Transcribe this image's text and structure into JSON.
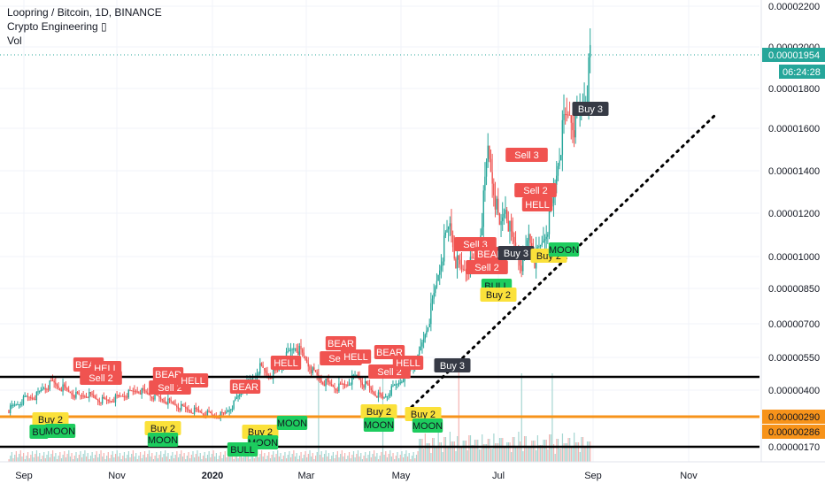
{
  "header": {
    "symbol_line": "Loopring / Bitcoin, 1D, BINANCE",
    "indicator_line": "Crypto Engineering ▯",
    "volume_label": "Vol"
  },
  "colors": {
    "up": "#26a69a",
    "down": "#ef5350",
    "horizontal_line": "#000000",
    "support_line": "#f7931a",
    "sell_label": "#f05350",
    "buy_label": "#fbe13a",
    "moon_label": "#1dcc5e",
    "dark_label": "#363a45",
    "last_price": "#26a69a"
  },
  "price_axis": {
    "ticks": [
      "0.00002200",
      "0.00002000",
      "0.00001800",
      "0.00001600",
      "0.00001400",
      "0.00001200",
      "0.00001000",
      "0.00000850",
      "0.00000700",
      "0.00000550",
      "0.00000400",
      "0.00000290",
      "0.00000170"
    ],
    "last_price_label": "0.00001954",
    "countdown_label": "06:24:28",
    "orange_badge_1": "0.00000290",
    "orange_badge_2": "0.00000286"
  },
  "time_axis": {
    "labels": [
      "Sep",
      "Nov",
      "2020",
      "Mar",
      "May",
      "Jul",
      "Sep",
      "Nov"
    ]
  },
  "chart_data": {
    "type": "candlestick",
    "title": "Loopring / Bitcoin, 1D, BINANCE",
    "scale": "log",
    "ylim": [
      1.5e-06,
      2.4e-06
    ],
    "horizontal_lines": [
      1.7e-06,
      4.55e-06,
      2.9e-06
    ],
    "last_price": 1.954e-05,
    "x_labels": [
      "Sep",
      "Nov",
      "2020",
      "Mar",
      "May",
      "Jul",
      "Sep",
      "Nov"
    ],
    "close_path": [
      [
        0,
        3.15e-06
      ],
      [
        6,
        3.4e-06
      ],
      [
        12,
        3.65e-06
      ],
      [
        18,
        3.7e-06
      ],
      [
        24,
        4.1e-06
      ],
      [
        30,
        4.3e-06
      ],
      [
        36,
        4.1e-06
      ],
      [
        42,
        3.9e-06
      ],
      [
        48,
        3.7e-06
      ],
      [
        54,
        3.8e-06
      ],
      [
        60,
        3.6e-06
      ],
      [
        66,
        3.5e-06
      ],
      [
        72,
        3.6e-06
      ],
      [
        80,
        3.8e-06
      ],
      [
        88,
        4e-06
      ],
      [
        96,
        3.8e-06
      ],
      [
        104,
        3.6e-06
      ],
      [
        112,
        3.4e-06
      ],
      [
        120,
        3.2e-06
      ],
      [
        128,
        3.1e-06
      ],
      [
        136,
        3e-06
      ],
      [
        142,
        2.9e-06
      ],
      [
        148,
        3e-06
      ],
      [
        154,
        3.4e-06
      ],
      [
        160,
        4e-06
      ],
      [
        166,
        4.4e-06
      ],
      [
        172,
        5e-06
      ],
      [
        178,
        4.6e-06
      ],
      [
        184,
        4.8e-06
      ],
      [
        190,
        5.5e-06
      ],
      [
        196,
        6e-06
      ],
      [
        202,
        5.5e-06
      ],
      [
        208,
        4.8e-06
      ],
      [
        214,
        4.4e-06
      ],
      [
        220,
        4.2e-06
      ],
      [
        226,
        4.1e-06
      ],
      [
        232,
        4.3e-06
      ],
      [
        238,
        4.6e-06
      ],
      [
        244,
        4.2e-06
      ],
      [
        250,
        3.9e-06
      ],
      [
        256,
        3.6e-06
      ],
      [
        262,
        4e-06
      ],
      [
        268,
        4.4e-06
      ],
      [
        274,
        4.8e-06
      ],
      [
        280,
        5.4e-06
      ],
      [
        286,
        6.8e-06
      ],
      [
        290,
        7.8e-06
      ],
      [
        294,
        9.2e-06
      ],
      [
        298,
        1.05e-05
      ],
      [
        302,
        1.15e-05
      ],
      [
        306,
        9.8e-06
      ],
      [
        310,
        9.3e-06
      ],
      [
        316,
        9.6e-06
      ],
      [
        320,
        9.8e-06
      ],
      [
        324,
        1.18e-05
      ],
      [
        328,
        1.5e-05
      ],
      [
        332,
        1.32e-05
      ],
      [
        336,
        1.12e-05
      ],
      [
        340,
        1.24e-05
      ],
      [
        344,
        1.08e-05
      ],
      [
        348,
        1.02e-05
      ],
      [
        352,
        9.5e-06
      ],
      [
        356,
        1.1e-05
      ],
      [
        360,
        9.8e-06
      ],
      [
        364,
        1.04e-05
      ],
      [
        368,
        1.12e-05
      ],
      [
        372,
        1.22e-05
      ],
      [
        376,
        1.45e-05
      ],
      [
        380,
        1.62e-05
      ],
      [
        384,
        1.68e-05
      ],
      [
        388,
        1.6e-05
      ],
      [
        392,
        1.72e-05
      ],
      [
        396,
        1.8e-05
      ],
      [
        398,
        1.95e-05
      ]
    ],
    "signals": [
      {
        "label": "Sell 3",
        "kind": "sell",
        "day": 325
      },
      {
        "label": "Sell 2",
        "kind": "sell",
        "day": 345
      },
      {
        "label": "HELL",
        "kind": "sell",
        "day": 350
      },
      {
        "label": "Sell 3",
        "kind": "sell",
        "day": 277
      },
      {
        "label": "BEAR",
        "kind": "sell",
        "day": 288
      },
      {
        "label": "Buy 3",
        "kind": "dark",
        "day": 335
      },
      {
        "label": "Sell 2",
        "kind": "sell",
        "day": 290
      },
      {
        "label": "BULL",
        "kind": "moon",
        "day": 288
      },
      {
        "label": "Buy 2",
        "kind": "buy",
        "day": 293
      },
      {
        "label": "Buy 2",
        "kind": "buy",
        "day": 348
      },
      {
        "label": "MOON",
        "kind": "moon",
        "day": 370
      },
      {
        "label": "Buy 3",
        "kind": "dark",
        "day": 393
      },
      {
        "label": "BEAR",
        "kind": "sell",
        "day": 45
      },
      {
        "label": "HELL",
        "kind": "sell",
        "day": 57
      },
      {
        "label": "Sell 2",
        "kind": "sell",
        "day": 53
      },
      {
        "label": "BEAR",
        "kind": "sell",
        "day": 98
      },
      {
        "label": "Sell 2",
        "kind": "sell",
        "day": 103
      },
      {
        "label": "HELL",
        "kind": "sell",
        "day": 112
      },
      {
        "label": "BEAR",
        "kind": "sell",
        "day": 140
      },
      {
        "label": "HELL",
        "kind": "sell",
        "day": 180
      },
      {
        "label": "BEAR",
        "kind": "sell",
        "day": 207
      },
      {
        "label": "Sell 2",
        "kind": "sell",
        "day": 215
      },
      {
        "label": "HELL",
        "kind": "sell",
        "day": 218
      },
      {
        "label": "BEAR",
        "kind": "sell",
        "day": 250
      },
      {
        "label": "Sell 2",
        "kind": "sell",
        "day": 253
      },
      {
        "label": "HELL",
        "kind": "sell",
        "day": 262
      },
      {
        "label": "Buy 3",
        "kind": "dark",
        "day": 290
      },
      {
        "label": "Buy 2",
        "kind": "buy",
        "day": 25
      },
      {
        "label": "BU",
        "kind": "moon",
        "day": 20
      },
      {
        "label": "MOON",
        "kind": "moon",
        "day": 32
      },
      {
        "label": "Buy 2",
        "kind": "buy",
        "day": 95
      },
      {
        "label": "MOON",
        "kind": "moon",
        "day": 95
      },
      {
        "label": "Buy 2",
        "kind": "buy",
        "day": 160
      },
      {
        "label": "MOON",
        "kind": "moon",
        "day": 168
      },
      {
        "label": "BULL",
        "kind": "moon",
        "day": 152
      },
      {
        "label": "MOON",
        "kind": "moon",
        "day": 188
      },
      {
        "label": "Buy 2",
        "kind": "buy",
        "day": 245
      },
      {
        "label": "MOON",
        "kind": "moon",
        "day": 245
      },
      {
        "label": "Buy 2",
        "kind": "buy",
        "day": 273
      },
      {
        "label": "MOON",
        "kind": "moon",
        "day": 278
      }
    ]
  }
}
